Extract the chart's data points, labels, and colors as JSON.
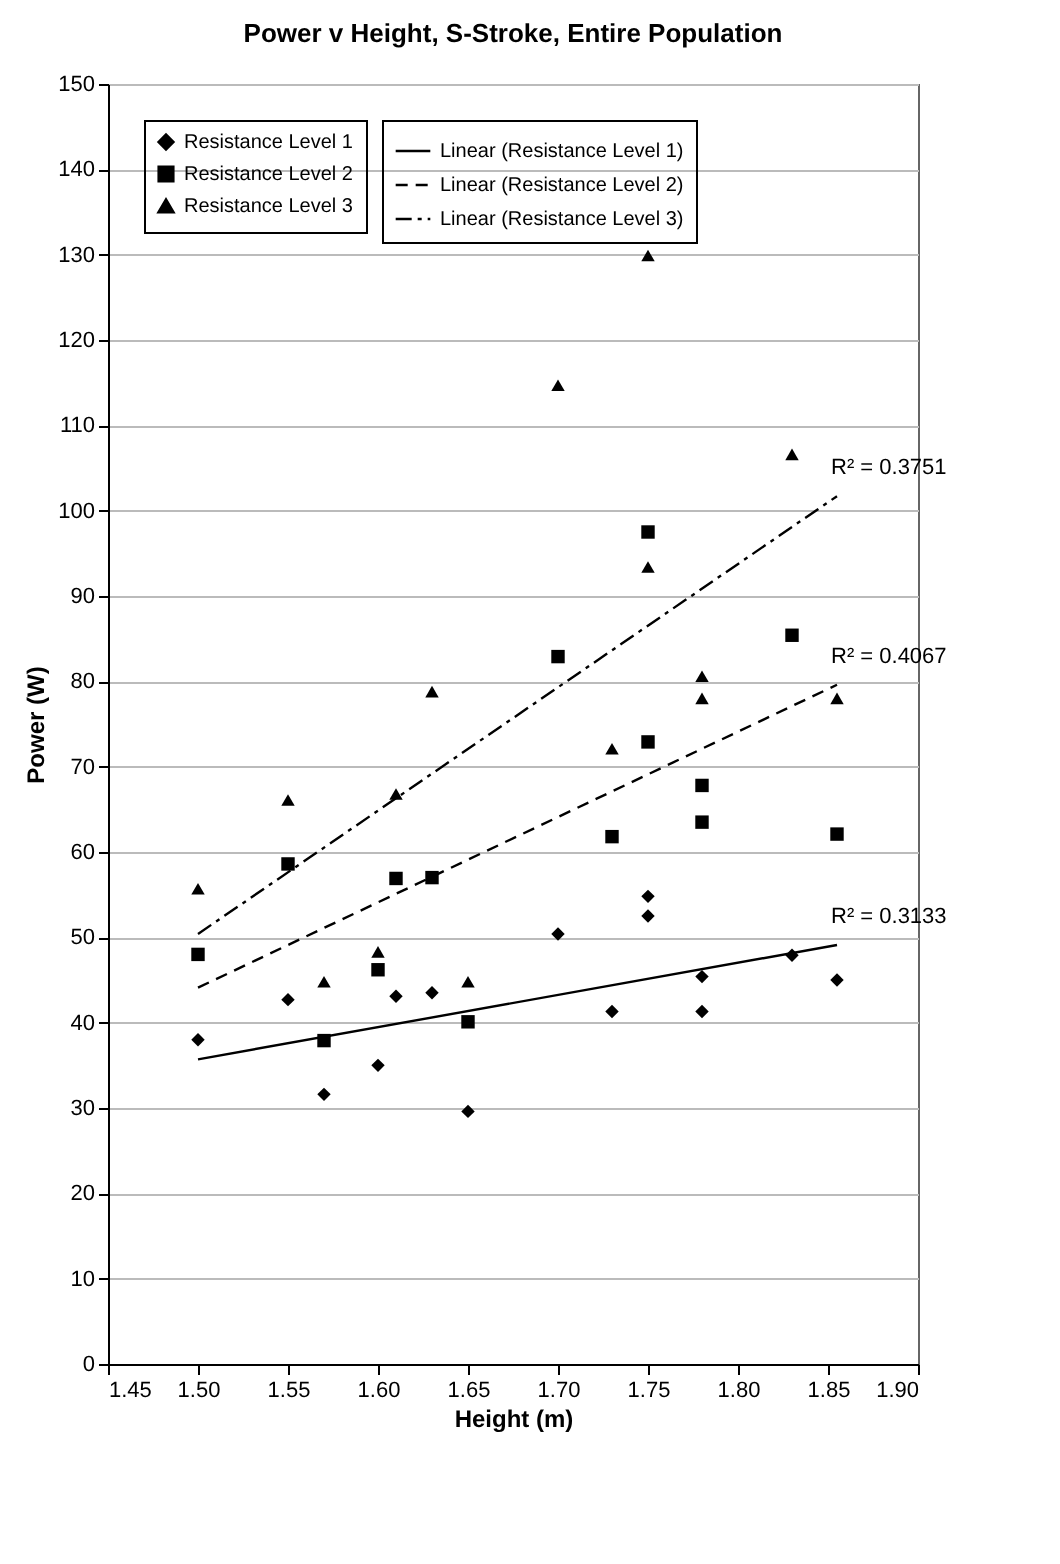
{
  "chart_data": {
    "type": "scatter",
    "title": "Power v Height, S-Stroke, Entire Population",
    "xlabel": "Height (m)",
    "ylabel": "Power (W)",
    "xlim": [
      1.45,
      1.9
    ],
    "xticks": [
      1.45,
      {
        "value": 1.5,
        "label": "1.50"
      },
      1.55,
      {
        "value": 1.6,
        "label": "1.60"
      },
      1.65,
      {
        "value": 1.7,
        "label": "1.70"
      },
      1.75,
      {
        "value": 1.8,
        "label": "1.80"
      },
      1.85,
      {
        "value": 1.9,
        "label": "1.90"
      }
    ],
    "ylim": [
      0,
      150
    ],
    "yticks": [
      0,
      10,
      20,
      30,
      40,
      50,
      60,
      70,
      80,
      90,
      100,
      110,
      120,
      130,
      140,
      150
    ],
    "grid": "y",
    "legend": "top left",
    "series": [
      {
        "name": "Resistance Level 1",
        "type": "scatter",
        "marker": "diamond",
        "color": "#000000",
        "x": [
          1.855,
          1.83,
          1.78,
          1.78,
          1.75,
          1.75,
          1.73,
          1.7,
          1.65,
          1.63,
          1.61,
          1.6,
          1.57,
          1.55,
          1.5
        ],
        "values": [
          45.0,
          47.9,
          45.4,
          41.3,
          54.8,
          52.5,
          41.3,
          50.4,
          29.6,
          43.5,
          43.1,
          35.0,
          31.6,
          42.7,
          38.0
        ]
      },
      {
        "name": "Resistance Level 2",
        "type": "scatter",
        "marker": "square",
        "color": "#000000",
        "x": [
          1.855,
          1.83,
          1.78,
          1.78,
          1.75,
          1.75,
          1.73,
          1.7,
          1.65,
          1.63,
          1.61,
          1.6,
          1.57,
          1.55,
          1.5
        ],
        "values": [
          62.1,
          85.4,
          67.8,
          63.5,
          97.5,
          72.9,
          61.8,
          82.9,
          40.1,
          57.0,
          56.9,
          46.2,
          37.9,
          58.6,
          48.0
        ]
      },
      {
        "name": "Resistance Level 3",
        "type": "scatter",
        "marker": "triangle",
        "color": "#000000",
        "x": [
          1.855,
          1.83,
          1.78,
          1.78,
          1.75,
          1.75,
          1.73,
          1.7,
          1.65,
          1.63,
          1.61,
          1.6,
          1.57,
          1.55,
          1.5
        ],
        "values": [
          78.0,
          106.6,
          80.6,
          78.0,
          129.9,
          93.4,
          72.1,
          114.7,
          44.8,
          78.8,
          66.8,
          48.3,
          44.8,
          66.1,
          55.7
        ]
      },
      {
        "name": "Linear (Resistance Level 1)",
        "type": "line",
        "line_style": "solid",
        "color": "#000000",
        "x": [
          1.5,
          1.855
        ],
        "values": [
          35.7,
          49.1
        ]
      },
      {
        "name": "Linear (Resistance Level 2)",
        "type": "line",
        "line_style": "dashed",
        "color": "#000000",
        "x": [
          1.5,
          1.855
        ],
        "values": [
          44.1,
          79.6
        ]
      },
      {
        "name": "Linear (Resistance Level 3)",
        "type": "line",
        "line_style": "dashdot",
        "color": "#000000",
        "x": [
          1.5,
          1.855
        ],
        "values": [
          50.4,
          101.7
        ]
      }
    ],
    "annotations": [
      "R² = 0.3133",
      "R² = 0.4067",
      "R² = 0.3751"
    ]
  }
}
